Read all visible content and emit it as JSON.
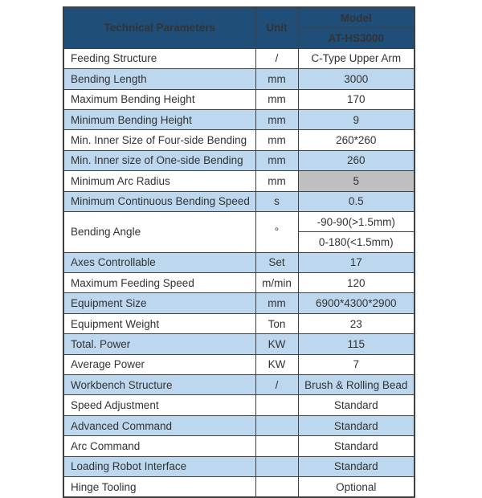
{
  "colors": {
    "header_bg": "#1F4E79",
    "header_text": "#FFFFFF",
    "row_bg": "#FFFFFF",
    "row_alt_bg": "#BDD7EE",
    "highlight_cell_bg": "#BFBFBF",
    "border": "#404040",
    "text": "#333333",
    "header_divider": "#7E95AD"
  },
  "table": {
    "header": {
      "parameters_label": "Technical Parameters",
      "unit_label": "Unit",
      "model_label": "Model",
      "model_value": "AT-HS3000"
    },
    "rows": [
      {
        "label": "Feeding Structure",
        "unit": "/",
        "value": "C-Type Upper Arm",
        "shaded": false
      },
      {
        "label": "Bending Length",
        "unit": "mm",
        "value": "3000",
        "shaded": true
      },
      {
        "label": "Maximum Bending Height",
        "unit": "mm",
        "value": "170",
        "shaded": false
      },
      {
        "label": "Minimum Bending Height",
        "unit": "mm",
        "value": "9",
        "shaded": true
      },
      {
        "label": "Min. Inner Size of Four-side Bending",
        "unit": "mm",
        "value": "260*260",
        "shaded": false
      },
      {
        "label": "Min. Inner size of One-side Bending",
        "unit": "mm",
        "value": "260",
        "shaded": true
      },
      {
        "label": "Minimum Arc Radius",
        "unit": "mm",
        "value": "5",
        "shaded": false,
        "value_highlight": true
      },
      {
        "label": "Minimum Continuous Bending Speed",
        "unit": "s",
        "value": "0.5",
        "shaded": true
      },
      {
        "label": "Bending Angle",
        "unit": "°",
        "values": [
          "-90-90(>1.5mm)",
          "0-180(<1.5mm)"
        ],
        "shaded": false
      },
      {
        "label": "Axes Controllable",
        "unit": "Set",
        "value": "17",
        "shaded": true
      },
      {
        "label": "Maximum Feeding Speed",
        "unit": "m/min",
        "value": "120",
        "shaded": false
      },
      {
        "label": "Equipment Size",
        "unit": "mm",
        "value": "6900*4300*2900",
        "shaded": true
      },
      {
        "label": "Equipment Weight",
        "unit": "Ton",
        "value": "23",
        "shaded": false
      },
      {
        "label": "Total. Power",
        "unit": "KW",
        "value": "115",
        "shaded": true
      },
      {
        "label": "Average Power",
        "unit": "KW",
        "value": "7",
        "shaded": false
      },
      {
        "label": "Workbench Structure",
        "unit": "/",
        "value": "Brush & Rolling Bead",
        "shaded": true
      },
      {
        "label": "Speed Adjustment",
        "unit": "",
        "value": "Standard",
        "shaded": false
      },
      {
        "label": "Advanced Command",
        "unit": "",
        "value": "Standard",
        "shaded": true
      },
      {
        "label": "Arc Command",
        "unit": "",
        "value": "Standard",
        "shaded": false
      },
      {
        "label": "Loading Robot Interface",
        "unit": "",
        "value": "Standard",
        "shaded": true
      },
      {
        "label": "Hinge Tooling",
        "unit": "",
        "value": "Optional",
        "shaded": false
      }
    ]
  }
}
